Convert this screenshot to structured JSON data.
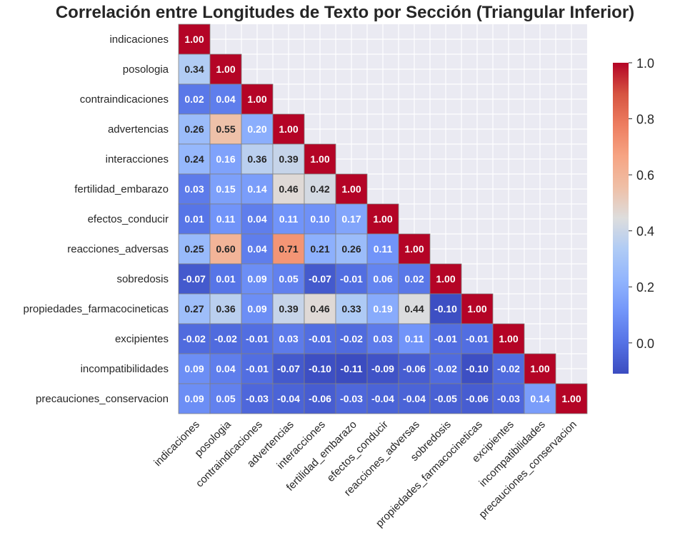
{
  "chart_data": {
    "type": "heatmap",
    "title": "Correlación entre Longitudes de Texto por Sección (Triangular Inferior)",
    "mask": "upper-triangle",
    "row_labels": [
      "indicaciones",
      "posologia",
      "contraindicaciones",
      "advertencias",
      "interacciones",
      "fertilidad_embarazo",
      "efectos_conducir",
      "reacciones_adversas",
      "sobredosis",
      "propiedades_farmacocineticas",
      "excipientes",
      "incompatibilidades",
      "precauciones_conservacion"
    ],
    "col_labels": [
      "indicaciones",
      "posologia",
      "contraindicaciones",
      "advertencias",
      "interacciones",
      "fertilidad_embarazo",
      "efectos_conducir",
      "reacciones_adversas",
      "sobredosis",
      "propiedades_farmacocineticas",
      "excipientes",
      "incompatibilidades",
      "precauciones_conservacion"
    ],
    "values": [
      [
        1.0
      ],
      [
        0.34,
        1.0
      ],
      [
        0.02,
        0.04,
        1.0
      ],
      [
        0.26,
        0.55,
        0.2,
        1.0
      ],
      [
        0.24,
        0.16,
        0.36,
        0.39,
        1.0
      ],
      [
        0.03,
        0.15,
        0.14,
        0.46,
        0.42,
        1.0
      ],
      [
        0.01,
        0.11,
        0.04,
        0.11,
        0.1,
        0.17,
        1.0
      ],
      [
        0.25,
        0.6,
        0.04,
        0.71,
        0.21,
        0.26,
        0.11,
        1.0
      ],
      [
        -0.07,
        0.01,
        0.09,
        0.05,
        -0.07,
        -0.01,
        0.06,
        0.02,
        1.0
      ],
      [
        0.27,
        0.36,
        0.09,
        0.39,
        0.46,
        0.33,
        0.19,
        0.44,
        -0.1,
        1.0
      ],
      [
        -0.02,
        -0.02,
        -0.01,
        0.03,
        -0.01,
        -0.02,
        0.03,
        0.11,
        -0.01,
        -0.01,
        1.0
      ],
      [
        0.09,
        0.04,
        -0.01,
        -0.07,
        -0.1,
        -0.11,
        -0.09,
        -0.06,
        -0.02,
        -0.1,
        -0.02,
        1.0
      ],
      [
        0.09,
        0.05,
        -0.03,
        -0.04,
        -0.06,
        -0.03,
        -0.04,
        -0.04,
        -0.05,
        -0.06,
        -0.03,
        0.14,
        1.0
      ]
    ],
    "value_format": "2 decimals",
    "colormap": "coolwarm",
    "vmin": -0.11,
    "vmax": 1.0,
    "colorbar": {
      "ticks": [
        0.0,
        0.2,
        0.4,
        0.6,
        0.8,
        1.0
      ],
      "tick_labels": [
        "0.0",
        "0.2",
        "0.4",
        "0.6",
        "0.8",
        "1.0"
      ]
    },
    "colors": {
      "masked_background": "#eaeaf2",
      "cell_border": "#808080",
      "grid_line": "#ffffff",
      "text_dark": "#262626",
      "text_light": "#ffffff"
    },
    "grid": true
  }
}
